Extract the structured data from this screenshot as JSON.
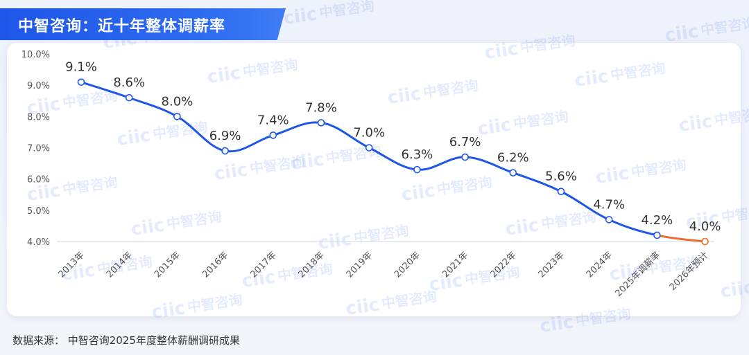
{
  "header": {
    "title": "中智咨询：近十年整体调薪率"
  },
  "watermark": {
    "brand": "ciic",
    "name": "中智咨询"
  },
  "footer": {
    "source": "数据来源：  中智咨询2025年度整体薪酬调研成果"
  },
  "colors": {
    "accent": "#1e56e8",
    "forecast": "#ec6a2c",
    "axis_text": "#555555"
  },
  "chart_data": {
    "type": "line",
    "title": "中智咨询：近十年整体调薪率",
    "categories": [
      "2013年",
      "2014年",
      "2015年",
      "2016年",
      "2017年",
      "2018年",
      "2019年",
      "2020年",
      "2021年",
      "2022年",
      "2023年",
      "2024年",
      "2025年调薪率",
      "2026年预计"
    ],
    "values": [
      9.1,
      8.6,
      8.0,
      6.9,
      7.4,
      7.8,
      7.0,
      6.3,
      6.7,
      6.2,
      5.6,
      4.7,
      4.2,
      4.0
    ],
    "data_labels": [
      "9.1%",
      "8.6%",
      "8.0%",
      "6.9%",
      "7.4%",
      "7.8%",
      "7.0%",
      "6.3%",
      "6.7%",
      "6.2%",
      "5.6%",
      "4.7%",
      "4.2%",
      "4.0%"
    ],
    "yticks": [
      "4.0%",
      "5.0%",
      "6.0%",
      "7.0%",
      "8.0%",
      "9.0%",
      "10.0%"
    ],
    "ytick_values": [
      4,
      5,
      6,
      7,
      8,
      9,
      10
    ],
    "ylim": [
      4,
      10
    ],
    "forecast_from_index": 12,
    "grid": false,
    "legend": "none"
  }
}
